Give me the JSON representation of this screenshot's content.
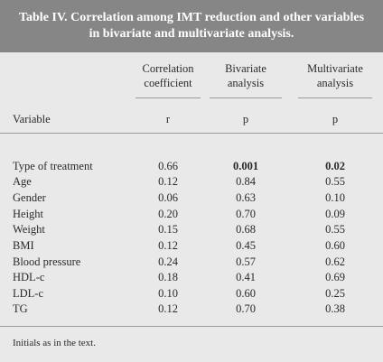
{
  "table": {
    "title_line1": "Table IV. Correlation among IMT reduction and other variables",
    "title_line2": "in bivariate and multivariate analysis.",
    "headers": {
      "variable": "Variable",
      "correlation_line1": "Correlation",
      "correlation_line2": "coefficient",
      "correlation_symbol": "r",
      "bivariate_line1": "Bivariate",
      "bivariate_line2": "analysis",
      "bivariate_symbol": "p",
      "multivariate_line1": "Multivariate",
      "multivariate_line2": "analysis",
      "multivariate_symbol": "p"
    },
    "rows": [
      {
        "variable": "Type of treatment",
        "r": "0.66",
        "p_bivariate": "0.001",
        "p_multivariate": "0.02"
      },
      {
        "variable": "Age",
        "r": "0.12",
        "p_bivariate": "0.84",
        "p_multivariate": "0.55"
      },
      {
        "variable": "Gender",
        "r": "0.06",
        "p_bivariate": "0.63",
        "p_multivariate": "0.10"
      },
      {
        "variable": "Height",
        "r": "0.20",
        "p_bivariate": "0.70",
        "p_multivariate": "0.09"
      },
      {
        "variable": "Weight",
        "r": "0.15",
        "p_bivariate": "0.68",
        "p_multivariate": "0.55"
      },
      {
        "variable": "BMI",
        "r": "0.12",
        "p_bivariate": "0.45",
        "p_multivariate": "0.60"
      },
      {
        "variable": "Blood pressure",
        "r": "0.24",
        "p_bivariate": "0.57",
        "p_multivariate": "0.62"
      },
      {
        "variable": "HDL-c",
        "r": "0.18",
        "p_bivariate": "0.41",
        "p_multivariate": "0.69"
      },
      {
        "variable": "LDL-c",
        "r": "0.10",
        "p_bivariate": "0.60",
        "p_multivariate": "0.25"
      },
      {
        "variable": "TG",
        "r": "0.12",
        "p_bivariate": "0.70",
        "p_multivariate": "0.38"
      }
    ],
    "footnote": "Initials as in the text.",
    "colors": {
      "title_background": "#868686",
      "body_background": "#e9e9e9",
      "text": "#2a2a2a"
    }
  }
}
